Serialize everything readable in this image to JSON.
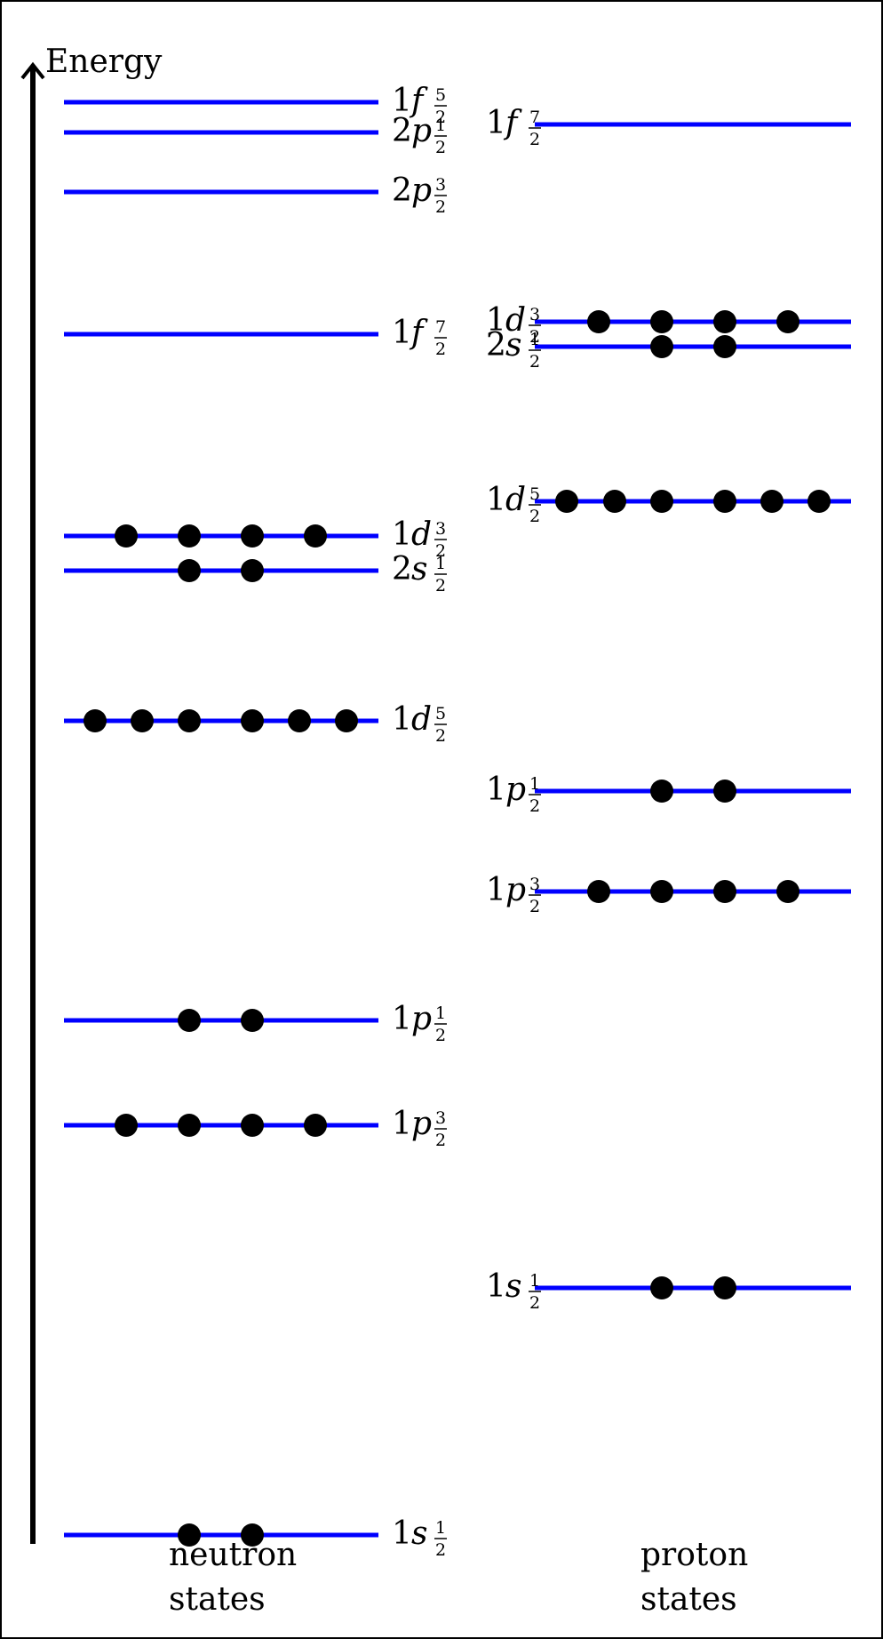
{
  "colors": {
    "level": "#0000ff",
    "nucleon": "#000000",
    "axis": "#000000",
    "border": "#000000"
  },
  "axis_label": "Energy",
  "neutron": {
    "label_line1": "neutron",
    "label_line2": "states",
    "levels": [
      {
        "n": "1",
        "l": "f",
        "j_num": "5",
        "j_den": "2",
        "nucleons": 0
      },
      {
        "n": "2",
        "l": "p",
        "j_num": "1",
        "j_den": "2",
        "nucleons": 0
      },
      {
        "n": "2",
        "l": "p",
        "j_num": "3",
        "j_den": "2",
        "nucleons": 0
      },
      {
        "n": "1",
        "l": "f",
        "j_num": "7",
        "j_den": "2",
        "nucleons": 0
      },
      {
        "n": "1",
        "l": "d",
        "j_num": "3",
        "j_den": "2",
        "nucleons": 4
      },
      {
        "n": "2",
        "l": "s",
        "j_num": "1",
        "j_den": "2",
        "nucleons": 2
      },
      {
        "n": "1",
        "l": "d",
        "j_num": "5",
        "j_den": "2",
        "nucleons": 6
      },
      {
        "n": "1",
        "l": "p",
        "j_num": "1",
        "j_den": "2",
        "nucleons": 2
      },
      {
        "n": "1",
        "l": "p",
        "j_num": "3",
        "j_den": "2",
        "nucleons": 4
      },
      {
        "n": "1",
        "l": "s",
        "j_num": "1",
        "j_den": "2",
        "nucleons": 2
      }
    ]
  },
  "proton": {
    "label_line1": "proton",
    "label_line2": "states",
    "levels": [
      {
        "n": "1",
        "l": "f",
        "j_num": "7",
        "j_den": "2",
        "nucleons": 0
      },
      {
        "n": "1",
        "l": "d",
        "j_num": "3",
        "j_den": "2",
        "nucleons": 4
      },
      {
        "n": "2",
        "l": "s",
        "j_num": "1",
        "j_den": "2",
        "nucleons": 2
      },
      {
        "n": "1",
        "l": "d",
        "j_num": "5",
        "j_den": "2",
        "nucleons": 6
      },
      {
        "n": "1",
        "l": "p",
        "j_num": "1",
        "j_den": "2",
        "nucleons": 2
      },
      {
        "n": "1",
        "l": "p",
        "j_num": "3",
        "j_den": "2",
        "nucleons": 4
      },
      {
        "n": "1",
        "l": "s",
        "j_num": "1",
        "j_den": "2",
        "nucleons": 2
      }
    ]
  }
}
